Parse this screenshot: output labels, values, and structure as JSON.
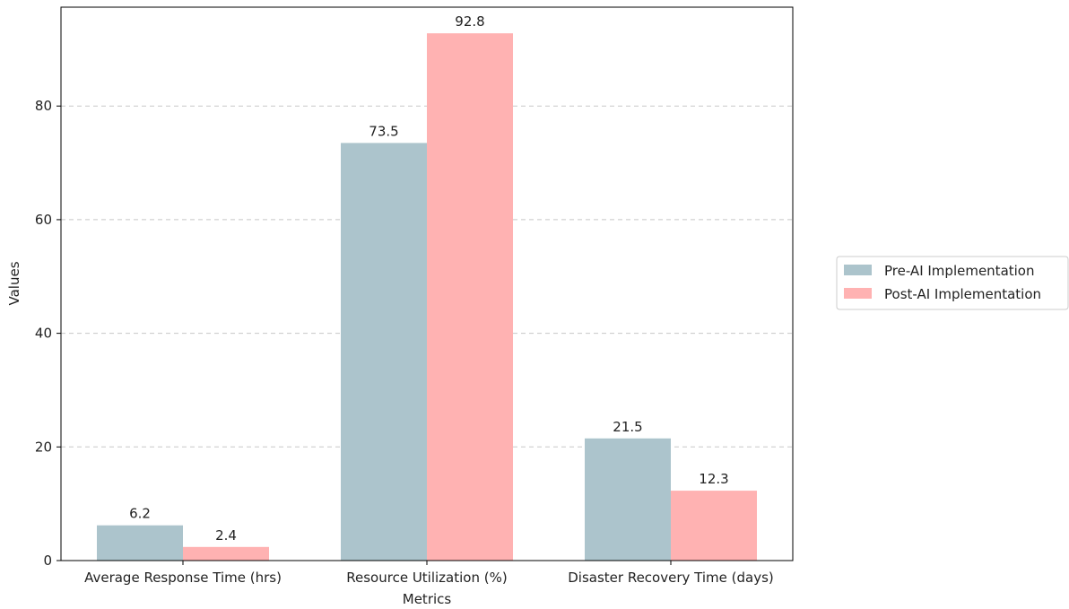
{
  "chart_data": {
    "type": "bar",
    "categories": [
      "Average Response Time (hrs)",
      "Resource Utilization (%)",
      "Disaster Recovery Time (days)"
    ],
    "series": [
      {
        "name": "Pre-AI Implementation",
        "values": [
          6.2,
          73.5,
          21.5
        ],
        "color": "#acc4cc",
        "labels": [
          "6.2",
          "73.5",
          "21.5"
        ]
      },
      {
        "name": "Post-AI Implementation",
        "values": [
          2.4,
          92.8,
          12.3
        ],
        "color": "#ffb2b2",
        "labels": [
          "2.4",
          "92.8",
          "12.3"
        ]
      }
    ],
    "title": "",
    "xlabel": "Metrics",
    "ylabel": "Values",
    "ylim": [
      0,
      97.4
    ],
    "yticks": [
      "0",
      "20",
      "40",
      "60",
      "80"
    ],
    "grid": "y-dashed",
    "legend_position": "right"
  }
}
